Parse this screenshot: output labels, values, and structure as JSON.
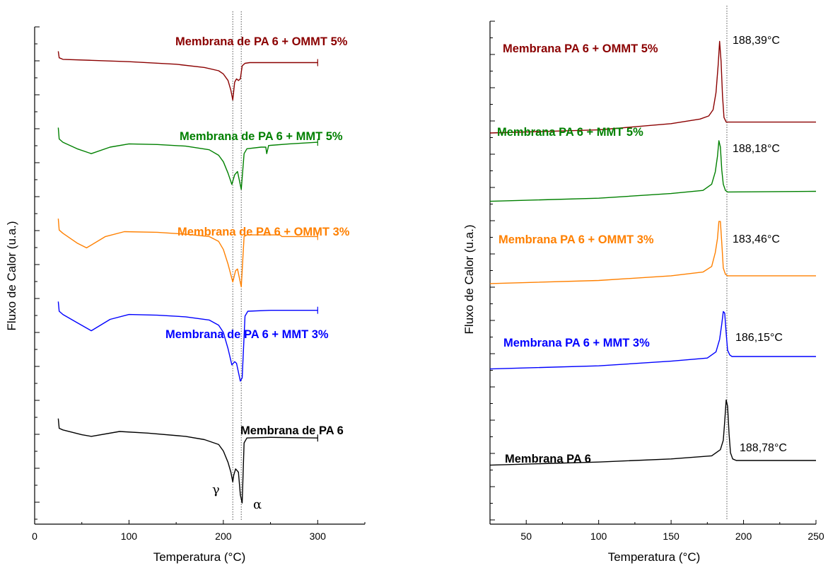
{
  "chart_data": [
    {
      "type": "line",
      "panel": "left",
      "xlabel": "Temperatura (°C)",
      "ylabel": "Fluxo de Calor (u.a.)",
      "xlim": [
        0,
        350
      ],
      "xticks": [
        0,
        100,
        200,
        300
      ],
      "x_tick_labels": [
        "0",
        "100",
        "200",
        "300"
      ],
      "y_ticks_shown": "unlabeled",
      "grid": false,
      "reference_lines": [
        210,
        219
      ],
      "annotations": [
        "γ",
        "α"
      ],
      "series": [
        {
          "name": "Membrana de PA 6 + OMMT 5%",
          "color": "#8b0000",
          "x": [
            25,
            26,
            30,
            60,
            100,
            150,
            180,
            195,
            200,
            205,
            208,
            210,
            212,
            214,
            216,
            218,
            220,
            223,
            228,
            250,
            300
          ],
          "y": [
            5.75,
            5.55,
            5.5,
            5.47,
            5.43,
            5.35,
            5.25,
            5.15,
            5.05,
            4.85,
            4.55,
            4.25,
            4.8,
            4.9,
            4.85,
            4.9,
            5.3,
            5.38,
            5.4,
            5.4,
            5.4
          ]
        },
        {
          "name": "Membrana de PA 6 + MMT 5%",
          "color": "#008000",
          "x": [
            25,
            26,
            30,
            45,
            60,
            80,
            100,
            130,
            160,
            185,
            195,
            200,
            205,
            209,
            212,
            215,
            219,
            222,
            225,
            240,
            245,
            246,
            248,
            270,
            300
          ],
          "y": [
            3.4,
            3.05,
            2.95,
            2.75,
            2.6,
            2.8,
            2.9,
            2.88,
            2.83,
            2.72,
            2.55,
            2.35,
            2.0,
            1.65,
            1.95,
            2.05,
            1.5,
            2.6,
            2.75,
            2.8,
            2.8,
            2.6,
            2.85,
            2.9,
            2.95
          ]
        },
        {
          "name": "Membrana de PA 6 + OMMT 3%",
          "color": "#ff8000",
          "x": [
            25,
            26,
            30,
            45,
            55,
            75,
            95,
            130,
            160,
            185,
            195,
            200,
            205,
            210,
            213,
            215,
            219,
            222,
            225,
            255,
            260,
            262,
            300
          ],
          "y": [
            0.6,
            0.25,
            0.15,
            -0.15,
            -0.3,
            0.05,
            0.2,
            0.18,
            0.12,
            0.05,
            -0.1,
            -0.35,
            -0.8,
            -1.35,
            -1.0,
            -0.95,
            -1.5,
            0.05,
            0.1,
            0.1,
            0.1,
            0.05,
            0.05
          ]
        },
        {
          "name": "Membrana de PA 6 + MMT 3%",
          "color": "#0000ff",
          "x": [
            25,
            26,
            30,
            45,
            60,
            80,
            100,
            130,
            160,
            185,
            195,
            200,
            205,
            209,
            212,
            214,
            218,
            220,
            223,
            226,
            250,
            300
          ],
          "y": [
            -1.95,
            -2.25,
            -2.35,
            -2.6,
            -2.85,
            -2.5,
            -2.35,
            -2.37,
            -2.42,
            -2.52,
            -2.68,
            -2.9,
            -3.4,
            -3.9,
            -3.8,
            -3.85,
            -4.4,
            -4.3,
            -2.4,
            -2.25,
            -2.22,
            -2.22
          ]
        },
        {
          "name": "Membrana de PA 6",
          "color": "#000000",
          "x": [
            25,
            26,
            30,
            50,
            60,
            90,
            120,
            160,
            180,
            195,
            200,
            205,
            208,
            210,
            211,
            213,
            216,
            218,
            220,
            222,
            225,
            250,
            300
          ],
          "y": [
            -5.55,
            -5.85,
            -5.9,
            -6.05,
            -6.1,
            -5.95,
            -6.0,
            -6.1,
            -6.2,
            -6.35,
            -6.55,
            -6.9,
            -7.2,
            -7.5,
            -7.3,
            -7.1,
            -7.2,
            -7.9,
            -8.15,
            -6.3,
            -6.15,
            -6.13,
            -6.15
          ]
        }
      ]
    },
    {
      "type": "line",
      "panel": "right",
      "xlabel": "Temperatura (°C)",
      "ylabel": "Fluxo de Calor (u.a.)",
      "xlim": [
        25,
        250
      ],
      "xticks": [
        50,
        100,
        150,
        200,
        250
      ],
      "x_tick_labels": [
        "50",
        "100",
        "150",
        "200",
        "250"
      ],
      "y_ticks_shown": "unlabeled",
      "grid": false,
      "reference_lines": [
        188.5
      ],
      "series": [
        {
          "name": "Membrana PA 6 + OMMT 5%",
          "color": "#8b0000",
          "peak": "188,39°C",
          "x": [
            25,
            100,
            150,
            170,
            176,
            179,
            181,
            182.5,
            183.5,
            184.5,
            185.5,
            186.5,
            188,
            190,
            250
          ],
          "y": [
            4.0,
            4.1,
            4.3,
            4.45,
            4.55,
            4.75,
            5.3,
            6.2,
            6.95,
            6.3,
            5.2,
            4.5,
            4.35,
            4.35,
            4.35
          ]
        },
        {
          "name": "Membrana PA 6 + MMT 5%",
          "color": "#008000",
          "peak": "188,18°C",
          "x": [
            25,
            100,
            150,
            172,
            178,
            180.5,
            182,
            183,
            184,
            185,
            186,
            187.5,
            189,
            250
          ],
          "y": [
            1.8,
            1.9,
            2.05,
            2.15,
            2.35,
            2.75,
            3.25,
            3.75,
            3.55,
            2.8,
            2.35,
            2.15,
            2.1,
            2.12
          ]
        },
        {
          "name": "Membrana PA 6 + OMMT 3%",
          "color": "#ff8000",
          "peak": "183,46°C",
          "x": [
            25,
            100,
            150,
            172,
            178,
            180.5,
            182,
            183,
            184,
            185,
            186,
            187.5,
            189,
            250
          ],
          "y": [
            -0.85,
            -0.75,
            -0.6,
            -0.48,
            -0.3,
            0.15,
            0.6,
            1.15,
            1.15,
            0.45,
            -0.35,
            -0.55,
            -0.6,
            -0.6
          ]
        },
        {
          "name": "Membrana PA 6 + MMT 3%",
          "color": "#0000ff",
          "peak": "186,15°C",
          "x": [
            25,
            100,
            150,
            175,
            181,
            183.5,
            185,
            186,
            187,
            188,
            189,
            190.5,
            192,
            250
          ],
          "y": [
            -3.6,
            -3.5,
            -3.35,
            -3.25,
            -3.05,
            -2.65,
            -2.15,
            -1.75,
            -1.8,
            -2.45,
            -3.0,
            -3.15,
            -3.2,
            -3.2
          ]
        },
        {
          "name": "Membrana PA 6",
          "color": "#000000",
          "peak": "188,78°C",
          "x": [
            25,
            100,
            150,
            178,
            184,
            186,
            187,
            188,
            189,
            190,
            191,
            192.5,
            195,
            250
          ],
          "y": [
            -6.7,
            -6.6,
            -6.5,
            -6.4,
            -6.2,
            -5.9,
            -5.3,
            -4.6,
            -4.8,
            -5.7,
            -6.3,
            -6.5,
            -6.55,
            -6.55
          ]
        }
      ]
    }
  ],
  "annotations": {
    "gamma": "γ",
    "alpha": "α"
  }
}
